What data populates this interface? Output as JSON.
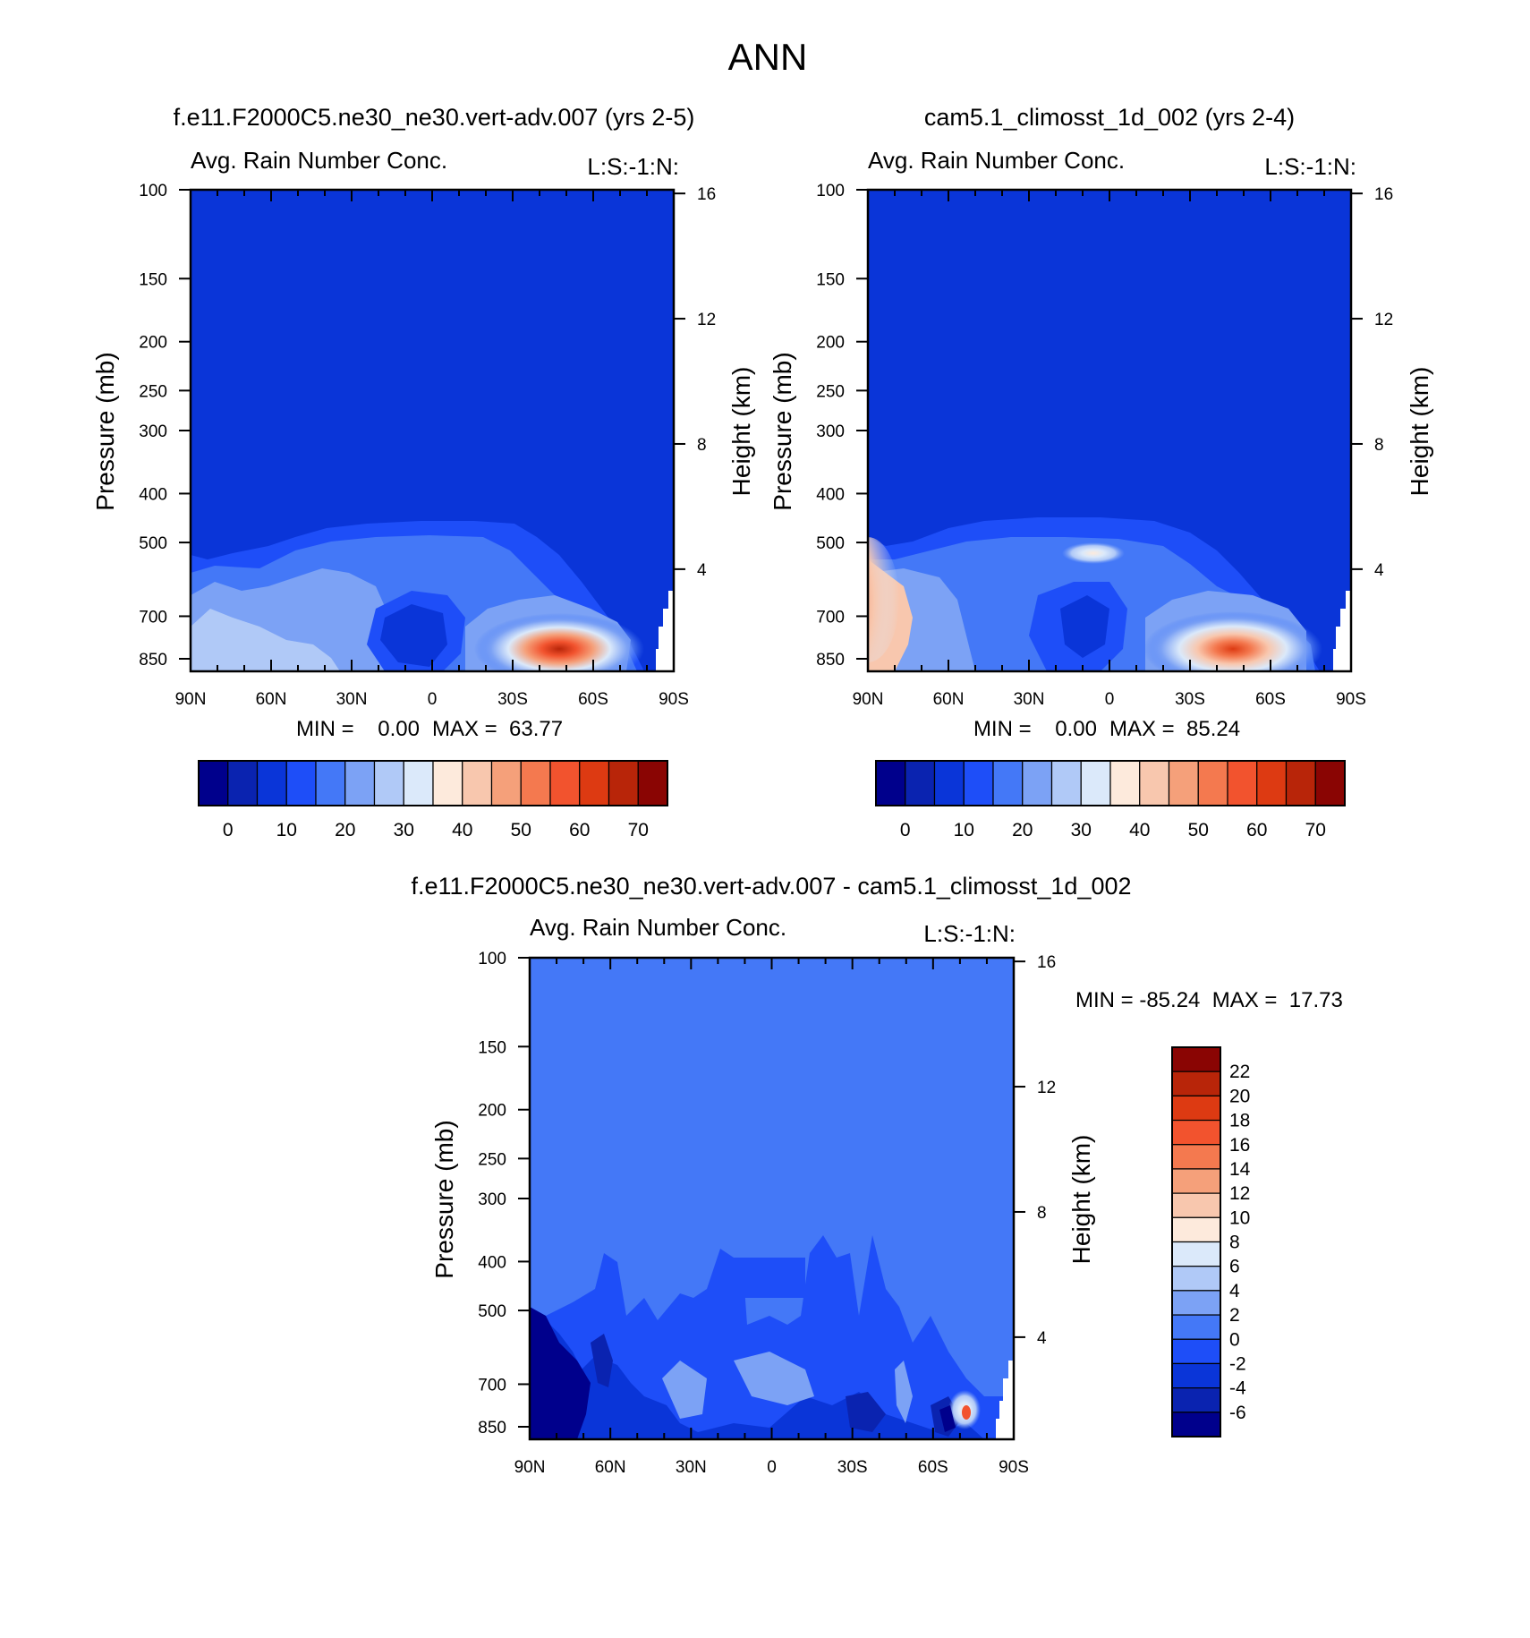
{
  "page": {
    "title": "ANN"
  },
  "chart_data": [
    {
      "id": "panel1",
      "type": "contour",
      "title": "f.e11.F2000C5.ne30_ne30.vert-adv.007 (yrs 2-5)",
      "subtitle": "Avg. Rain Number Conc.",
      "right_string": "L:S:-1:N:",
      "xlabel": "",
      "ylabel": "Pressure (mb)",
      "y2label": "Height (km)",
      "x_ticks": [
        "90N",
        "60N",
        "30N",
        "0",
        "30S",
        "60S",
        "90S"
      ],
      "y_ticks": [
        "100",
        "150",
        "200",
        "250",
        "300",
        "400",
        "500",
        "700",
        "850"
      ],
      "y2_ticks": [
        "16",
        "12",
        "8",
        "4"
      ],
      "y_scale": "log",
      "min_label": "MIN =    0.00",
      "max_label": "MAX =  63.77",
      "min": 0.0,
      "max": 63.77,
      "colorbar_labels": [
        "0",
        "10",
        "20",
        "30",
        "40",
        "50",
        "60",
        "70"
      ],
      "colorbar_orientation": "horizontal",
      "max_location": {
        "lat": "45S",
        "pressure_mb": 850
      }
    },
    {
      "id": "panel2",
      "type": "contour",
      "title": "cam5.1_climosst_1d_002 (yrs 2-4)",
      "subtitle": "Avg. Rain Number Conc.",
      "right_string": "L:S:-1:N:",
      "xlabel": "",
      "ylabel": "Pressure (mb)",
      "y2label": "Height (km)",
      "x_ticks": [
        "90N",
        "60N",
        "30N",
        "0",
        "30S",
        "60S",
        "90S"
      ],
      "y_ticks": [
        "100",
        "150",
        "200",
        "250",
        "300",
        "400",
        "500",
        "700",
        "850"
      ],
      "y2_ticks": [
        "16",
        "12",
        "8",
        "4"
      ],
      "y_scale": "log",
      "min_label": "MIN =    0.00",
      "max_label": "MAX =  85.24",
      "min": 0.0,
      "max": 85.24,
      "colorbar_labels": [
        "0",
        "10",
        "20",
        "30",
        "40",
        "50",
        "60",
        "70"
      ],
      "colorbar_orientation": "horizontal",
      "max_location": {
        "lat": "45S",
        "pressure_mb": 850
      }
    },
    {
      "id": "panel3",
      "type": "contour",
      "title": "f.e11.F2000C5.ne30_ne30.vert-adv.007 - cam5.1_climosst_1d_002",
      "subtitle": "Avg. Rain Number Conc.",
      "right_string": "L:S:-1:N:",
      "xlabel": "",
      "ylabel": "Pressure (mb)",
      "y2label": "Height (km)",
      "x_ticks": [
        "90N",
        "60N",
        "30N",
        "0",
        "30S",
        "60S",
        "90S"
      ],
      "y_ticks": [
        "100",
        "150",
        "200",
        "250",
        "300",
        "400",
        "500",
        "700",
        "850"
      ],
      "y2_ticks": [
        "16",
        "12",
        "8",
        "4"
      ],
      "y_scale": "log",
      "minmax_label": "MIN = -85.24  MAX =  17.73",
      "min": -85.24,
      "max": 17.73,
      "colorbar_labels": [
        "22",
        "20",
        "18",
        "16",
        "14",
        "12",
        "10",
        "8",
        "6",
        "4",
        "2",
        "0",
        "-2",
        "-4",
        "-6"
      ],
      "colorbar_orientation": "vertical"
    }
  ],
  "colors": {
    "seq16": [
      "#00008c",
      "#0a23b0",
      "#0a35d8",
      "#1e4ef8",
      "#4478f7",
      "#7ca2f5",
      "#b0c9f7",
      "#dbe9fa",
      "#fdeadc",
      "#f8c7ae",
      "#f5a07a",
      "#f4794f",
      "#f2532e",
      "#dd3a12",
      "#b82509",
      "#8a0503"
    ],
    "diff_background": "#4478f7"
  }
}
